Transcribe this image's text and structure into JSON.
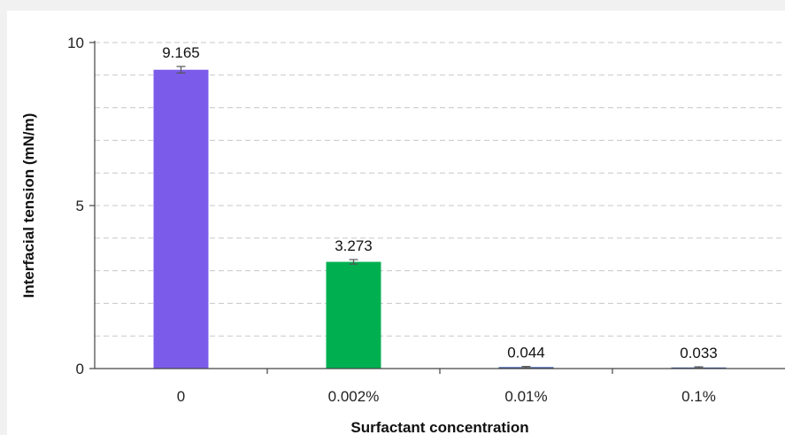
{
  "chart_data": {
    "type": "bar",
    "categories": [
      "0",
      "0.002%",
      "0.01%",
      "0.1%"
    ],
    "values": [
      9.165,
      3.273,
      0.044,
      0.033
    ],
    "value_labels": [
      "9.165",
      "3.273",
      "0.044",
      "0.033"
    ],
    "error": [
      0.1,
      0.07,
      0.02,
      0.02
    ],
    "bar_colors": [
      "#7b5cea",
      "#00b050",
      "#2e4fa3",
      "#2e4fa3"
    ],
    "xlabel": "Surfactant concentration",
    "ylabel": "Interfacial tension (mN/m)",
    "ylim": [
      0,
      10
    ],
    "yticks": [
      0,
      5,
      10
    ],
    "y_minor_gridlines": [
      1,
      2,
      3,
      4,
      6,
      7,
      8,
      9
    ],
    "grid": true,
    "legend": false
  }
}
